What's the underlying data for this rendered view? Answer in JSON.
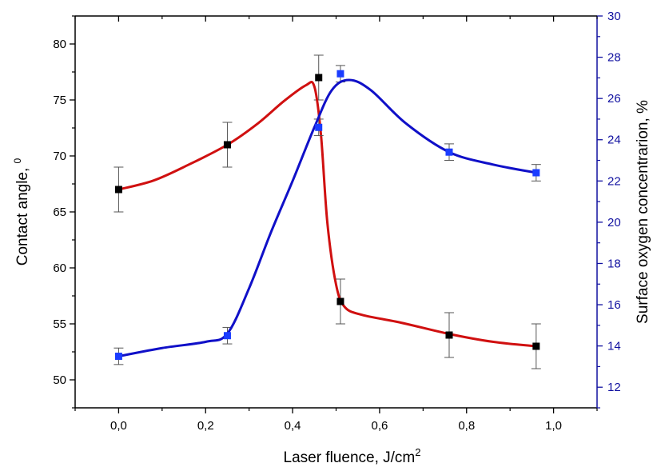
{
  "chart_data": {
    "type": "scatter",
    "xlabel": "Laser fluence, J/cm",
    "xlabel_sup": "2",
    "ylabel_left": "Contact angle, ",
    "ylabel_left_sup": "0",
    "ylabel_right": "Surface oxygen concentrarion, %",
    "xlim": [
      -0.1,
      1.1
    ],
    "ylim_left": [
      47.5,
      82.5
    ],
    "ylim_right": [
      11,
      30
    ],
    "x_ticks": [
      "0,0",
      "0,2",
      "0,4",
      "0,6",
      "0,8",
      "1,0"
    ],
    "x_tick_values": [
      0.0,
      0.2,
      0.4,
      0.6,
      0.8,
      1.0
    ],
    "y_left_ticks": [
      "50",
      "55",
      "60",
      "65",
      "70",
      "75",
      "80"
    ],
    "y_left_tick_values": [
      50,
      55,
      60,
      65,
      70,
      75,
      80
    ],
    "y_right_ticks": [
      "12",
      "14",
      "16",
      "18",
      "20",
      "22",
      "24",
      "26",
      "28",
      "30"
    ],
    "y_right_tick_values": [
      12,
      14,
      16,
      18,
      20,
      22,
      24,
      26,
      28,
      30
    ],
    "series": [
      {
        "axis": "left",
        "marker_color": "#000000",
        "line_color": "#d01010",
        "x": [
          0.0,
          0.25,
          0.46,
          0.51,
          0.76,
          0.96
        ],
        "y": [
          67,
          71,
          77,
          57,
          54,
          53
        ],
        "error": [
          2,
          2,
          2,
          2,
          2,
          2
        ],
        "fit_curve": [
          [
            0.0,
            67
          ],
          [
            0.08,
            67.8
          ],
          [
            0.16,
            69.2
          ],
          [
            0.25,
            71
          ],
          [
            0.32,
            72.9
          ],
          [
            0.38,
            74.9
          ],
          [
            0.43,
            76.3
          ],
          [
            0.45,
            76.2
          ],
          [
            0.465,
            72
          ],
          [
            0.48,
            64
          ],
          [
            0.5,
            58.5
          ],
          [
            0.52,
            56.5
          ],
          [
            0.56,
            55.8
          ],
          [
            0.65,
            55.1
          ],
          [
            0.76,
            54.1
          ],
          [
            0.86,
            53.4
          ],
          [
            0.96,
            53
          ]
        ]
      },
      {
        "axis": "right",
        "marker_color": "#1a3cff",
        "line_color": "#1010c8",
        "x": [
          0.0,
          0.25,
          0.46,
          0.51,
          0.76,
          0.96
        ],
        "y": [
          13.5,
          14.5,
          24.6,
          27.2,
          23.4,
          22.4
        ],
        "error": [
          0.4,
          0.4,
          0.4,
          0.4,
          0.4,
          0.4
        ],
        "fit_curve": [
          [
            0.0,
            13.5
          ],
          [
            0.1,
            13.9
          ],
          [
            0.2,
            14.2
          ],
          [
            0.25,
            14.6
          ],
          [
            0.3,
            16.8
          ],
          [
            0.35,
            19.5
          ],
          [
            0.4,
            22.0
          ],
          [
            0.45,
            24.6
          ],
          [
            0.49,
            26.4
          ],
          [
            0.53,
            26.9
          ],
          [
            0.58,
            26.4
          ],
          [
            0.66,
            24.8
          ],
          [
            0.76,
            23.4
          ],
          [
            0.86,
            22.8
          ],
          [
            0.96,
            22.4
          ]
        ]
      }
    ],
    "colors": {
      "left_axis": "#000000",
      "right_axis": "#1010a0",
      "left_fit": "#d01010",
      "right_fit": "#1010c8"
    }
  }
}
